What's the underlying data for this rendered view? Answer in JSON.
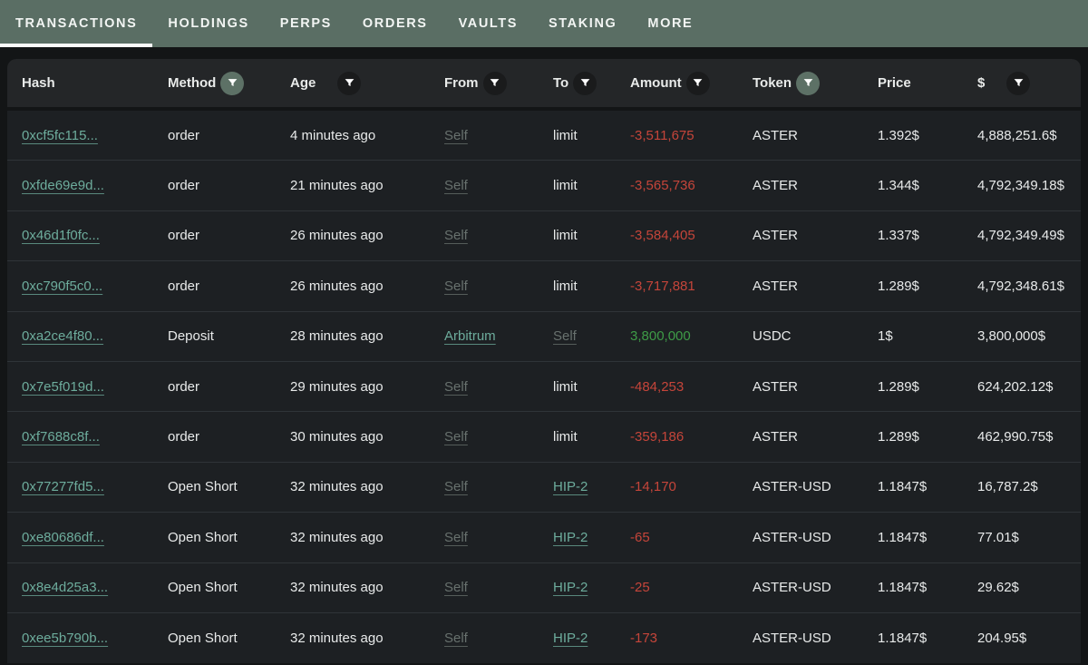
{
  "nav": {
    "tabs": [
      {
        "label": "TRANSACTIONS",
        "active": true
      },
      {
        "label": "HOLDINGS",
        "active": false
      },
      {
        "label": "PERPS",
        "active": false
      },
      {
        "label": "ORDERS",
        "active": false
      },
      {
        "label": "VAULTS",
        "active": false
      },
      {
        "label": "STAKING",
        "active": false
      },
      {
        "label": "MORE",
        "active": false
      }
    ]
  },
  "table": {
    "columns": [
      {
        "label": "Hash",
        "filter": false,
        "filter_active": false
      },
      {
        "label": "Method",
        "filter": true,
        "filter_active": true
      },
      {
        "label": "Age",
        "filter": true,
        "filter_active": false
      },
      {
        "label": "From",
        "filter": true,
        "filter_active": false
      },
      {
        "label": "To",
        "filter": true,
        "filter_active": false
      },
      {
        "label": "Amount",
        "filter": true,
        "filter_active": false
      },
      {
        "label": "Token",
        "filter": true,
        "filter_active": true
      },
      {
        "label": "Price",
        "filter": false,
        "filter_active": false
      },
      {
        "label": "$",
        "filter": true,
        "filter_active": false
      }
    ],
    "rows": [
      {
        "hash": "0xcf5fc115...",
        "method": "order",
        "age": "4 minutes ago",
        "from": {
          "text": "Self",
          "style": "muted"
        },
        "to": {
          "text": "limit",
          "style": "plain"
        },
        "amount": {
          "text": "-3,511,675",
          "dir": "neg"
        },
        "token": "ASTER",
        "price": "1.392$",
        "usd": "4,888,251.6$"
      },
      {
        "hash": "0xfde69e9d...",
        "method": "order",
        "age": "21 minutes ago",
        "from": {
          "text": "Self",
          "style": "muted"
        },
        "to": {
          "text": "limit",
          "style": "plain"
        },
        "amount": {
          "text": "-3,565,736",
          "dir": "neg"
        },
        "token": "ASTER",
        "price": "1.344$",
        "usd": "4,792,349.18$"
      },
      {
        "hash": "0x46d1f0fc...",
        "method": "order",
        "age": "26 minutes ago",
        "from": {
          "text": "Self",
          "style": "muted"
        },
        "to": {
          "text": "limit",
          "style": "plain"
        },
        "amount": {
          "text": "-3,584,405",
          "dir": "neg"
        },
        "token": "ASTER",
        "price": "1.337$",
        "usd": "4,792,349.49$"
      },
      {
        "hash": "0xc790f5c0...",
        "method": "order",
        "age": "26 minutes ago",
        "from": {
          "text": "Self",
          "style": "muted"
        },
        "to": {
          "text": "limit",
          "style": "plain"
        },
        "amount": {
          "text": "-3,717,881",
          "dir": "neg"
        },
        "token": "ASTER",
        "price": "1.289$",
        "usd": "4,792,348.61$"
      },
      {
        "hash": "0xa2ce4f80...",
        "method": "Deposit",
        "age": "28 minutes ago",
        "from": {
          "text": "Arbitrum",
          "style": "teal"
        },
        "to": {
          "text": "Self",
          "style": "muted"
        },
        "amount": {
          "text": "3,800,000",
          "dir": "pos"
        },
        "token": "USDC",
        "price": "1$",
        "usd": "3,800,000$"
      },
      {
        "hash": "0x7e5f019d...",
        "method": "order",
        "age": "29 minutes ago",
        "from": {
          "text": "Self",
          "style": "muted"
        },
        "to": {
          "text": "limit",
          "style": "plain"
        },
        "amount": {
          "text": "-484,253",
          "dir": "neg"
        },
        "token": "ASTER",
        "price": "1.289$",
        "usd": "624,202.12$"
      },
      {
        "hash": "0xf7688c8f...",
        "method": "order",
        "age": "30 minutes ago",
        "from": {
          "text": "Self",
          "style": "muted"
        },
        "to": {
          "text": "limit",
          "style": "plain"
        },
        "amount": {
          "text": "-359,186",
          "dir": "neg"
        },
        "token": "ASTER",
        "price": "1.289$",
        "usd": "462,990.75$"
      },
      {
        "hash": "0x77277fd5...",
        "method": "Open Short",
        "age": "32 minutes ago",
        "from": {
          "text": "Self",
          "style": "muted"
        },
        "to": {
          "text": "HIP-2",
          "style": "teal"
        },
        "amount": {
          "text": "-14,170",
          "dir": "neg"
        },
        "token": "ASTER-USD",
        "price": "1.1847$",
        "usd": "16,787.2$"
      },
      {
        "hash": "0xe80686df...",
        "method": "Open Short",
        "age": "32 minutes ago",
        "from": {
          "text": "Self",
          "style": "muted"
        },
        "to": {
          "text": "HIP-2",
          "style": "teal"
        },
        "amount": {
          "text": "-65",
          "dir": "neg"
        },
        "token": "ASTER-USD",
        "price": "1.1847$",
        "usd": "77.01$"
      },
      {
        "hash": "0x8e4d25a3...",
        "method": "Open Short",
        "age": "32 minutes ago",
        "from": {
          "text": "Self",
          "style": "muted"
        },
        "to": {
          "text": "HIP-2",
          "style": "teal"
        },
        "amount": {
          "text": "-25",
          "dir": "neg"
        },
        "token": "ASTER-USD",
        "price": "1.1847$",
        "usd": "29.62$"
      },
      {
        "hash": "0xee5b790b...",
        "method": "Open Short",
        "age": "32 minutes ago",
        "from": {
          "text": "Self",
          "style": "muted"
        },
        "to": {
          "text": "HIP-2",
          "style": "teal"
        },
        "amount": {
          "text": "-173",
          "dir": "neg"
        },
        "token": "ASTER-USD",
        "price": "1.1847$",
        "usd": "204.95$"
      }
    ]
  },
  "colors": {
    "nav_background": "#5a6e64",
    "active_tab_underline": "#fafafa",
    "page_background": "#131516",
    "header_background": "#242628",
    "row_background": "#1d2023",
    "link_teal": "#6dac9c",
    "link_muted": "#68716e",
    "amount_negative": "#c5453a",
    "amount_positive": "#3e9b47",
    "filter_active_circle": "#5d7166"
  }
}
